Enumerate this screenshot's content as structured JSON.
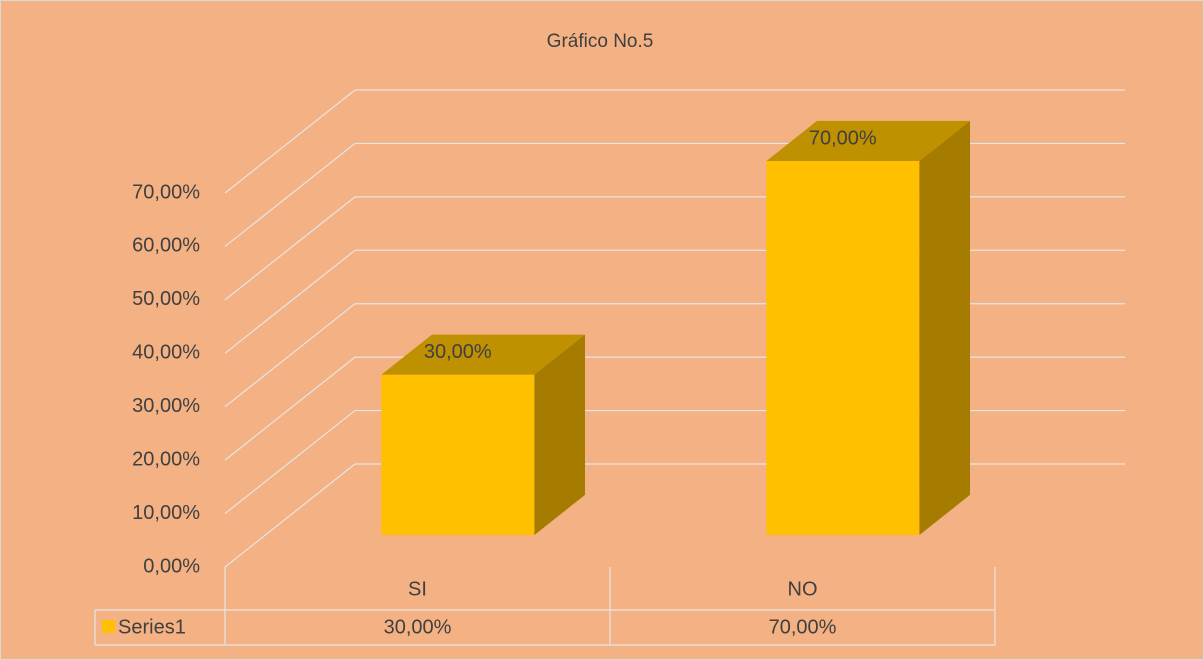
{
  "chart_data": {
    "type": "bar3d",
    "title": "Gráfico No.5",
    "categories": [
      "SI",
      "NO"
    ],
    "series": [
      {
        "name": "Series1",
        "color": "#ffc000",
        "values": [
          30,
          70
        ],
        "value_labels": [
          "30,00%",
          "70,00%"
        ]
      }
    ],
    "ylim": [
      0,
      70
    ],
    "yticks": [
      {
        "value": 0,
        "label": "0,00%"
      },
      {
        "value": 10,
        "label": "10,00%"
      },
      {
        "value": 20,
        "label": "20,00%"
      },
      {
        "value": 30,
        "label": "30,00%"
      },
      {
        "value": 40,
        "label": "40,00%"
      },
      {
        "value": 50,
        "label": "50,00%"
      },
      {
        "value": 60,
        "label": "60,00%"
      },
      {
        "value": 70,
        "label": "70,00%"
      }
    ],
    "grid": true,
    "data_table": true
  }
}
